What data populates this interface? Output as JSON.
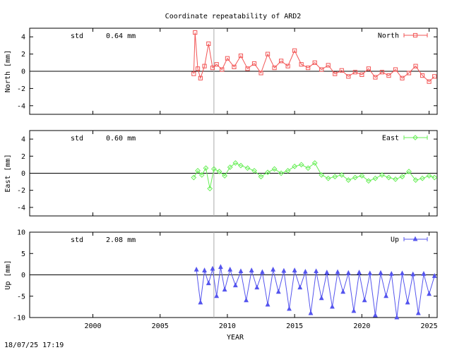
{
  "footer": {
    "timestamp": "18/07/25 17:19"
  },
  "chart_data": {
    "type": "line",
    "title": "Coordinate repeatability of ARD2",
    "xlabel": "YEAR",
    "xlim": [
      1995.3,
      2025.6
    ],
    "xticks": [
      2000,
      2005,
      2010,
      2015,
      2020,
      2025
    ],
    "vline_x": 2009.0,
    "panels": [
      {
        "series_name": "North",
        "ylabel": "North [mm]",
        "ylim": [
          -5,
          5
        ],
        "yticks": [
          -4,
          -2,
          0,
          2,
          4
        ],
        "std_label": "std",
        "std_value": "0.64 mm",
        "color": "#f25555",
        "marker": "square",
        "series": {
          "name": "North",
          "x": [
            2007.5,
            2007.6,
            2007.8,
            2008.0,
            2008.3,
            2008.6,
            2008.9,
            2009.2,
            2009.6,
            2010.0,
            2010.5,
            2011.0,
            2011.5,
            2012.0,
            2012.5,
            2013.0,
            2013.5,
            2014.0,
            2014.5,
            2015.0,
            2015.5,
            2016.0,
            2016.5,
            2017.0,
            2017.5,
            2018.0,
            2018.5,
            2019.0,
            2019.5,
            2020.0,
            2020.5,
            2021.0,
            2021.5,
            2022.0,
            2022.5,
            2023.0,
            2023.5,
            2024.0,
            2024.5,
            2025.0,
            2025.4
          ],
          "values": [
            -0.3,
            4.5,
            0.3,
            -0.8,
            0.6,
            3.2,
            0.4,
            0.8,
            0.2,
            1.5,
            0.5,
            1.8,
            0.3,
            0.9,
            -0.2,
            2.0,
            0.4,
            1.2,
            0.6,
            2.4,
            0.8,
            0.4,
            1.0,
            0.2,
            0.7,
            -0.3,
            0.1,
            -0.6,
            -0.1,
            -0.4,
            0.3,
            -0.7,
            -0.1,
            -0.5,
            0.2,
            -0.8,
            -0.2,
            0.6,
            -0.5,
            -1.2,
            -0.6
          ]
        }
      },
      {
        "series_name": "East",
        "ylabel": "East [mm]",
        "ylim": [
          -5,
          5
        ],
        "yticks": [
          -4,
          -2,
          0,
          2,
          4
        ],
        "std_label": "std",
        "std_value": "0.60 mm",
        "color": "#66ee55",
        "marker": "diamond",
        "series": {
          "name": "East",
          "x": [
            2007.5,
            2007.8,
            2008.1,
            2008.4,
            2008.7,
            2009.0,
            2009.4,
            2009.8,
            2010.2,
            2010.6,
            2011.0,
            2011.5,
            2012.0,
            2012.5,
            2013.0,
            2013.5,
            2014.0,
            2014.5,
            2015.0,
            2015.5,
            2016.0,
            2016.5,
            2017.0,
            2017.5,
            2018.0,
            2018.5,
            2019.0,
            2019.5,
            2020.0,
            2020.5,
            2021.0,
            2021.5,
            2022.0,
            2022.5,
            2023.0,
            2023.5,
            2024.0,
            2024.5,
            2025.0,
            2025.4
          ],
          "values": [
            -0.5,
            0.3,
            -0.2,
            0.6,
            -1.8,
            0.5,
            0.2,
            -0.3,
            0.7,
            1.2,
            0.9,
            0.6,
            0.3,
            -0.4,
            0.1,
            0.5,
            0.0,
            0.3,
            0.8,
            1.0,
            0.6,
            1.2,
            -0.2,
            -0.6,
            -0.4,
            -0.2,
            -0.8,
            -0.5,
            -0.3,
            -0.9,
            -0.6,
            -0.2,
            -0.5,
            -0.7,
            -0.4,
            0.2,
            -0.8,
            -0.6,
            -0.3,
            -0.5
          ]
        }
      },
      {
        "series_name": "Up",
        "ylabel": "Up [mm]",
        "ylim": [
          -10,
          10
        ],
        "yticks": [
          -10,
          -5,
          0,
          5,
          10
        ],
        "std_label": "std",
        "std_value": "2.08 mm",
        "color": "#5555ee",
        "marker": "triangle",
        "series": {
          "name": "Up",
          "x": [
            2007.7,
            2008.0,
            2008.3,
            2008.6,
            2008.9,
            2009.2,
            2009.5,
            2009.8,
            2010.2,
            2010.6,
            2011.0,
            2011.4,
            2011.8,
            2012.2,
            2012.6,
            2013.0,
            2013.4,
            2013.8,
            2014.2,
            2014.6,
            2015.0,
            2015.4,
            2015.8,
            2016.2,
            2016.6,
            2017.0,
            2017.4,
            2017.8,
            2018.2,
            2018.6,
            2019.0,
            2019.4,
            2019.8,
            2020.2,
            2020.6,
            2021.0,
            2021.4,
            2021.8,
            2022.2,
            2022.6,
            2023.0,
            2023.4,
            2023.8,
            2024.2,
            2024.6,
            2025.0,
            2025.4
          ],
          "values": [
            1.2,
            -6.5,
            1.0,
            -2.0,
            1.4,
            -5.0,
            1.8,
            -3.5,
            1.2,
            -2.5,
            0.8,
            -6.0,
            1.0,
            -3.0,
            0.6,
            -7.0,
            1.2,
            -4.0,
            0.9,
            -8.0,
            1.0,
            -3.0,
            0.7,
            -9.0,
            0.8,
            -5.5,
            0.5,
            -7.5,
            0.6,
            -4.0,
            0.4,
            -8.5,
            0.5,
            -6.0,
            0.3,
            -9.5,
            0.4,
            -5.0,
            0.2,
            -10.0,
            0.3,
            -6.5,
            0.1,
            -9.0,
            0.2,
            -4.5,
            -0.3
          ]
        }
      }
    ]
  }
}
